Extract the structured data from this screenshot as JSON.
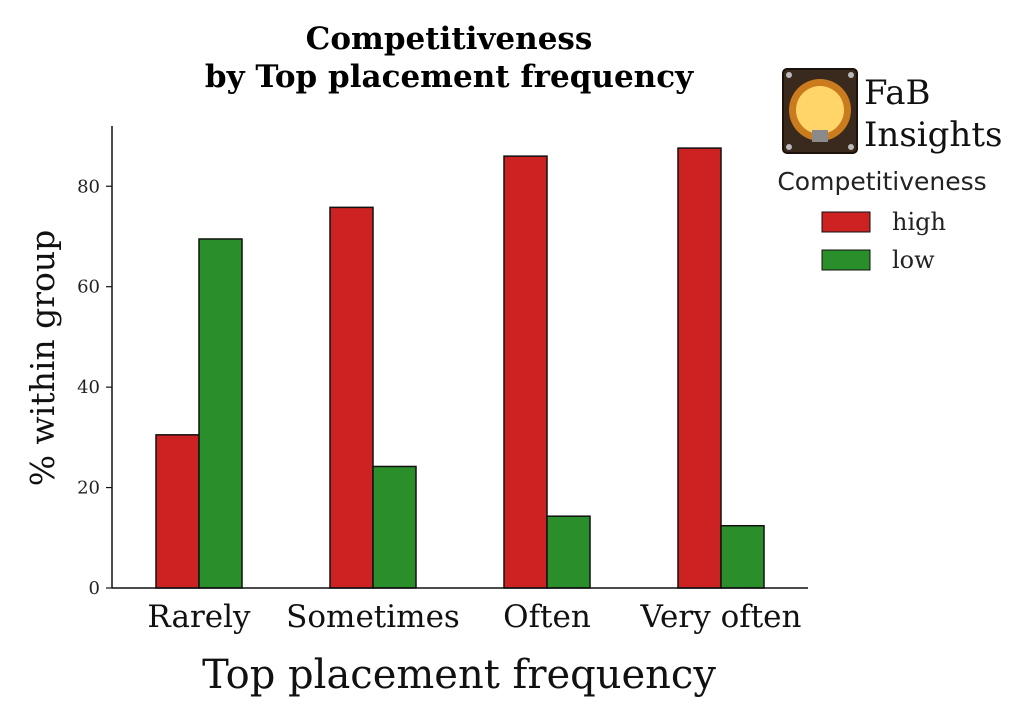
{
  "logo": {
    "line1": "FaB",
    "line2": "Insights"
  },
  "colors": {
    "high": "#cc2222",
    "low": "#2a8f2a"
  },
  "chart_data": {
    "type": "bar",
    "title_line1": "Competitiveness",
    "title_line2": "by Top placement frequency",
    "xlabel": "Top placement frequency",
    "ylabel": "% within group",
    "categories": [
      "Rarely",
      "Sometimes",
      "Often",
      "Very often"
    ],
    "series": [
      {
        "name": "high",
        "values": [
          30.5,
          75.8,
          86.0,
          87.6
        ]
      },
      {
        "name": "low",
        "values": [
          69.5,
          24.2,
          14.3,
          12.4
        ]
      }
    ],
    "ylim": [
      0,
      92
    ],
    "yticks": [
      0,
      20,
      40,
      60,
      80
    ],
    "legend": {
      "title": "Competitiveness",
      "placement": "upper-right-outside"
    },
    "grid": false
  }
}
